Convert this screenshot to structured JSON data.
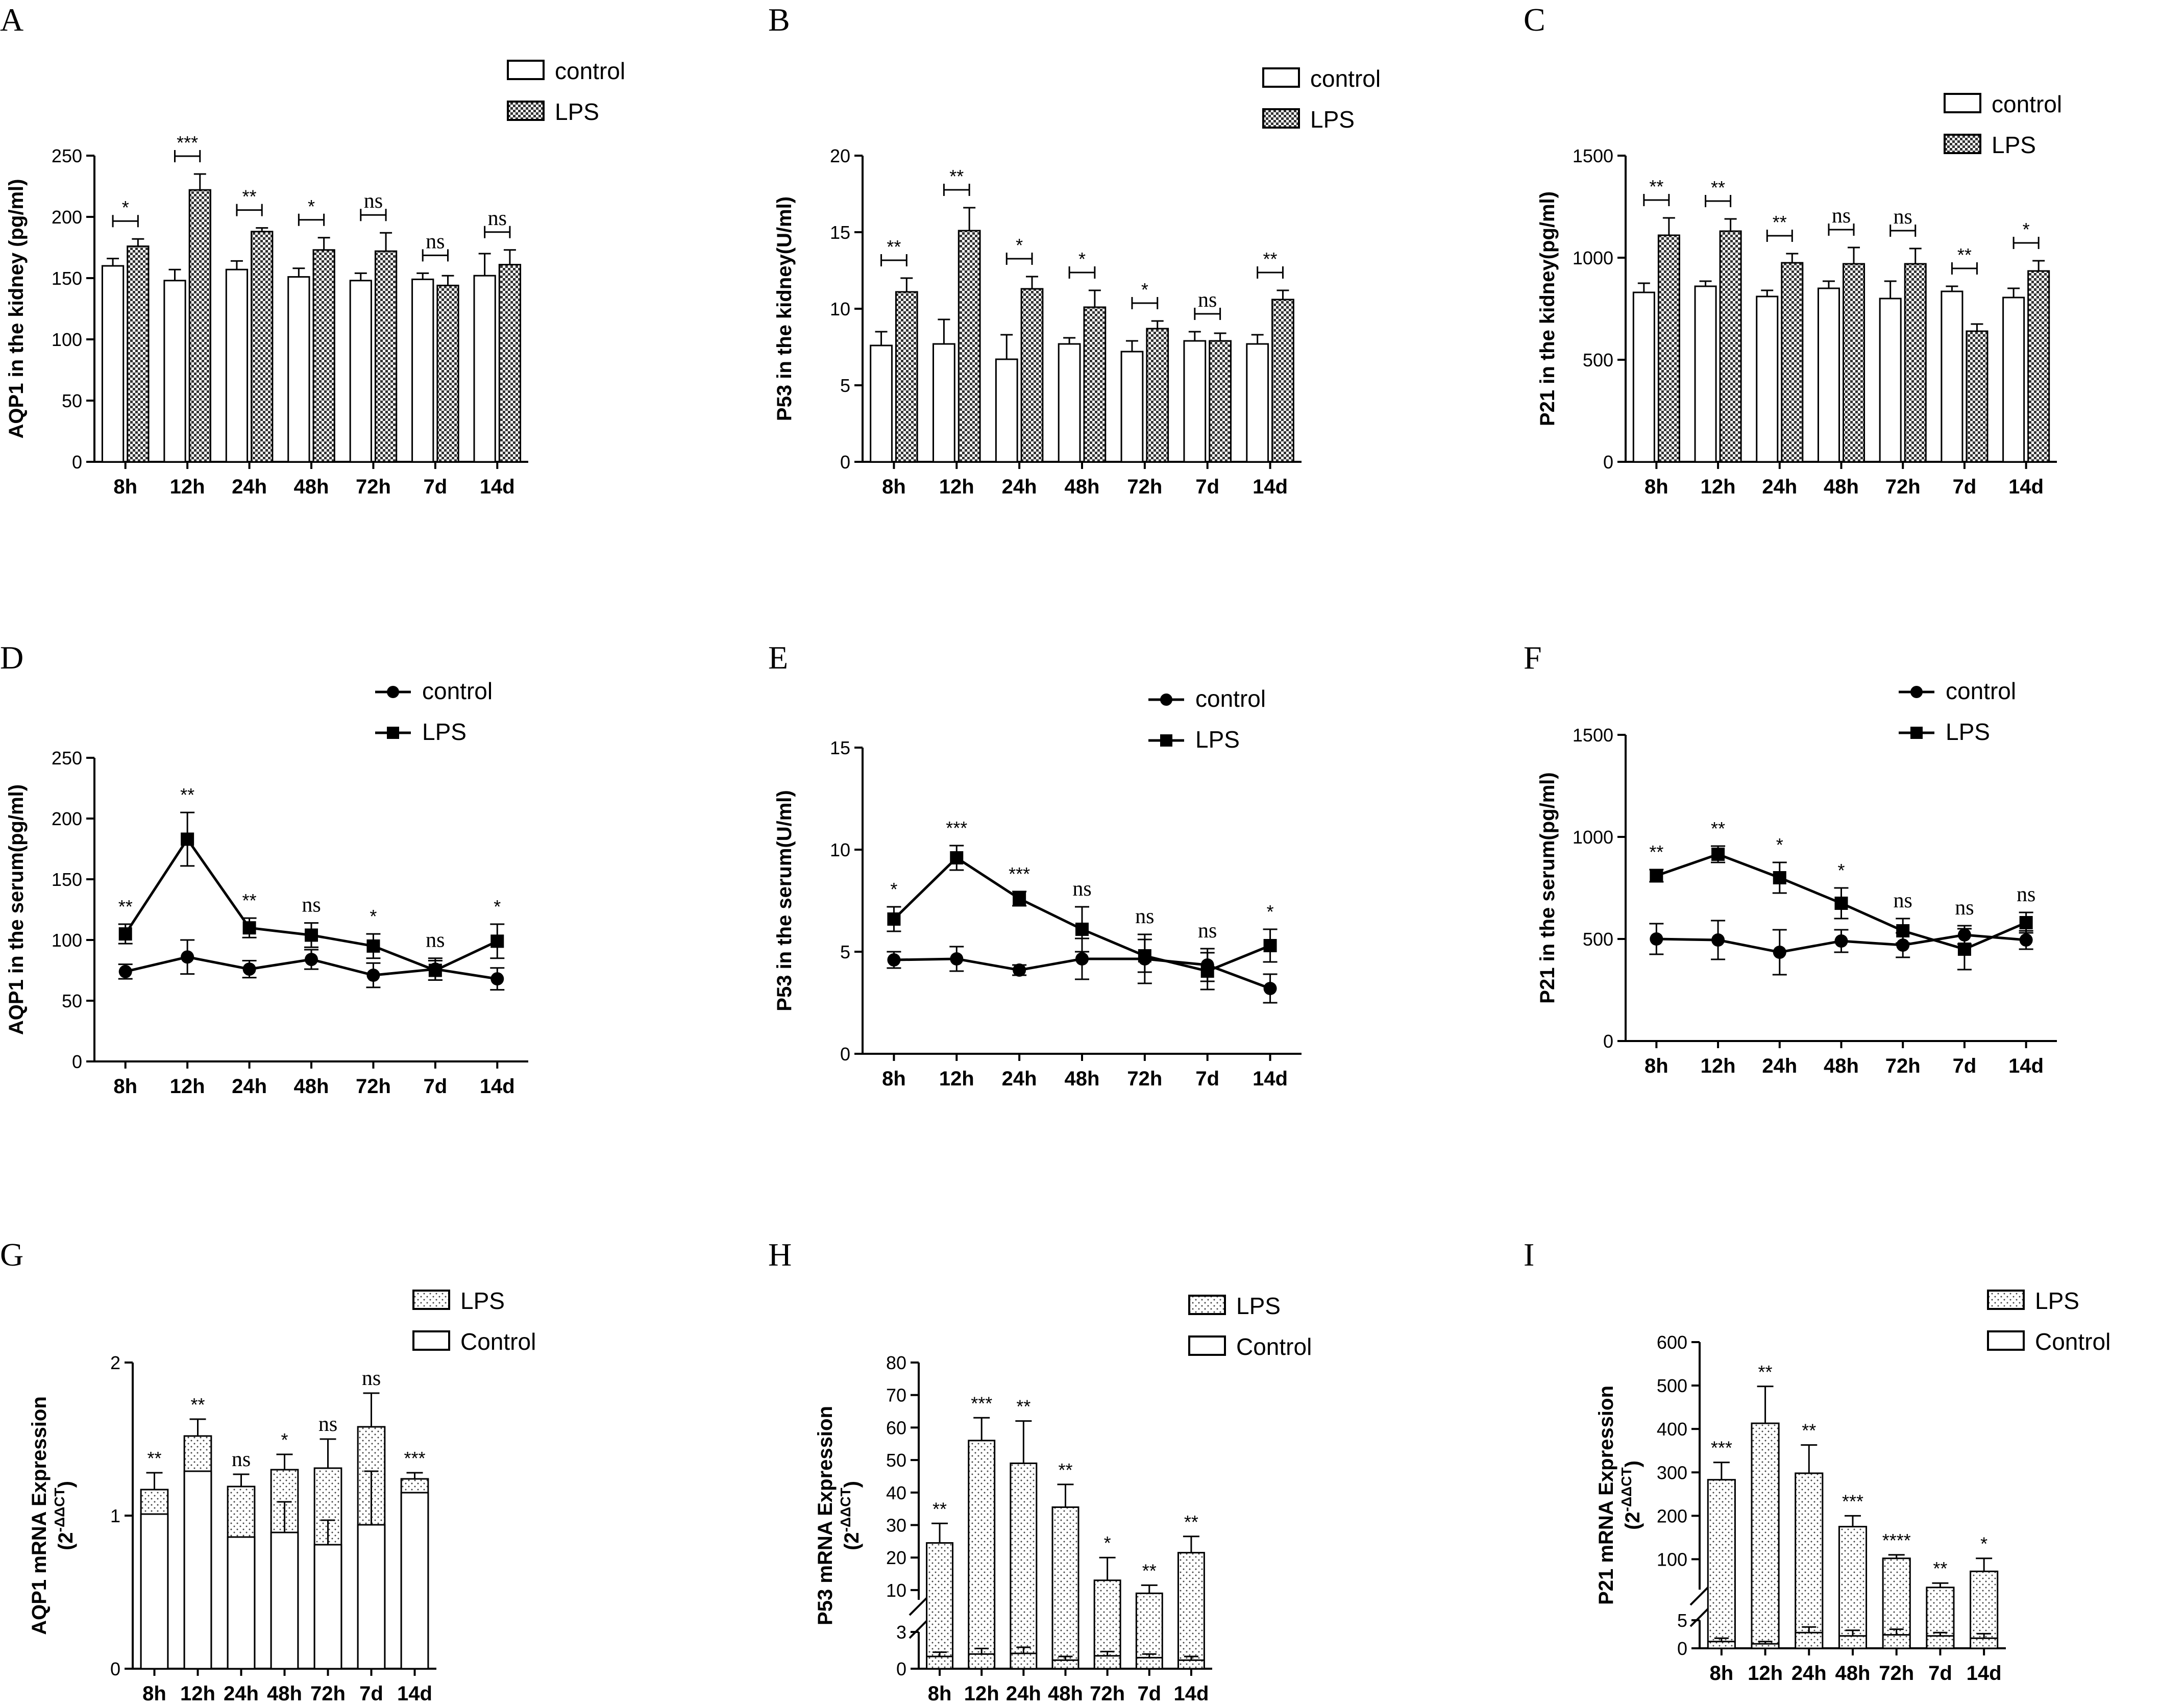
{
  "chart_data": [
    {
      "panel": "A",
      "type": "bar",
      "ylabel": "AQP1 in the kidney (pg/ml)",
      "categories": [
        "8h",
        "12h",
        "24h",
        "48h",
        "72h",
        "7d",
        "14d"
      ],
      "ylim": [
        0,
        250
      ],
      "yticks": [
        0,
        50,
        100,
        150,
        200,
        250
      ],
      "series": [
        {
          "name": "control",
          "values": [
            160,
            148,
            157,
            151,
            148,
            149,
            152
          ],
          "err": [
            6,
            9,
            7,
            7,
            6,
            5,
            18
          ]
        },
        {
          "name": "LPS",
          "values": [
            176,
            222,
            188,
            173,
            172,
            144,
            161
          ],
          "err": [
            6,
            13,
            3,
            10,
            15,
            8,
            12
          ]
        }
      ],
      "significance": [
        "*",
        "***",
        "**",
        "*",
        "ns",
        "ns",
        "ns"
      ]
    },
    {
      "panel": "B",
      "type": "bar",
      "ylabel": "P53 in the kidney(U/ml)",
      "categories": [
        "8h",
        "12h",
        "24h",
        "48h",
        "72h",
        "7d",
        "14d"
      ],
      "ylim": [
        0,
        20
      ],
      "yticks": [
        0,
        5,
        10,
        15,
        20
      ],
      "series": [
        {
          "name": "control",
          "values": [
            7.6,
            7.7,
            6.7,
            7.7,
            7.2,
            7.9,
            7.7
          ],
          "err": [
            0.9,
            1.6,
            1.6,
            0.4,
            0.7,
            0.6,
            0.6
          ]
        },
        {
          "name": "LPS",
          "values": [
            11.1,
            15.1,
            11.3,
            10.1,
            8.7,
            7.9,
            10.6
          ],
          "err": [
            0.9,
            1.5,
            0.8,
            1.1,
            0.5,
            0.5,
            0.6
          ]
        }
      ],
      "significance": [
        "**",
        "**",
        "*",
        "*",
        "*",
        "ns",
        "**"
      ]
    },
    {
      "panel": "C",
      "type": "bar",
      "ylabel": "P21 in the kidney(pg/ml)",
      "categories": [
        "8h",
        "12h",
        "24h",
        "48h",
        "72h",
        "7d",
        "14d"
      ],
      "ylim": [
        0,
        1500
      ],
      "yticks": [
        0,
        500,
        1000,
        1500
      ],
      "series": [
        {
          "name": "control",
          "values": [
            830,
            860,
            810,
            850,
            800,
            835,
            805
          ],
          "err": [
            45,
            25,
            30,
            35,
            85,
            25,
            45
          ]
        },
        {
          "name": "LPS",
          "values": [
            1110,
            1130,
            975,
            970,
            970,
            640,
            935
          ],
          "err": [
            85,
            60,
            45,
            80,
            75,
            35,
            50
          ]
        }
      ],
      "significance": [
        "**",
        "**",
        "**",
        "ns",
        "ns",
        "**",
        "*"
      ]
    },
    {
      "panel": "D",
      "type": "line",
      "ylabel": "AQP1 in the serum(pg/ml)",
      "categories": [
        "8h",
        "12h",
        "24h",
        "48h",
        "72h",
        "7d",
        "14d"
      ],
      "ylim": [
        0,
        250
      ],
      "yticks": [
        0,
        50,
        100,
        150,
        200,
        250
      ],
      "series": [
        {
          "name": "control",
          "marker": "circle",
          "values": [
            74,
            86,
            76,
            84,
            71,
            76,
            68
          ],
          "err": [
            6,
            14,
            7,
            8,
            10,
            9,
            9
          ]
        },
        {
          "name": "LPS",
          "marker": "square",
          "values": [
            105,
            183,
            110,
            104,
            95,
            75,
            99
          ],
          "err": [
            8,
            22,
            8,
            10,
            10,
            8,
            14
          ]
        }
      ],
      "significance": [
        "**",
        "**",
        "**",
        "ns",
        "*",
        "ns",
        "*"
      ]
    },
    {
      "panel": "E",
      "type": "line",
      "ylabel": "P53 in the serum(U/ml)",
      "categories": [
        "8h",
        "12h",
        "24h",
        "48h",
        "72h",
        "7d",
        "14d"
      ],
      "ylim": [
        0,
        15
      ],
      "yticks": [
        0,
        5,
        10,
        15
      ],
      "series": [
        {
          "name": "control",
          "marker": "circle",
          "values": [
            4.6,
            4.65,
            4.1,
            4.65,
            4.65,
            4.35,
            3.2
          ],
          "err": [
            0.4,
            0.6,
            0.25,
            1.0,
            1.2,
            0.8,
            0.7
          ]
        },
        {
          "name": "LPS",
          "marker": "square",
          "values": [
            6.6,
            9.6,
            7.6,
            6.1,
            4.8,
            4.05,
            5.3
          ],
          "err": [
            0.6,
            0.6,
            0.35,
            1.1,
            0.8,
            0.9,
            0.8
          ]
        }
      ],
      "significance": [
        "*",
        "***",
        "***",
        "ns",
        "ns",
        "ns",
        "*"
      ]
    },
    {
      "panel": "F",
      "type": "line",
      "ylabel": "P21 in the serum(pg/ml)",
      "categories": [
        "8h",
        "12h",
        "24h",
        "48h",
        "72h",
        "7d",
        "14d"
      ],
      "ylim": [
        0,
        1500
      ],
      "yticks": [
        0,
        500,
        1000,
        1500
      ],
      "series": [
        {
          "name": "control",
          "marker": "circle",
          "values": [
            500,
            495,
            435,
            490,
            470,
            520,
            495
          ],
          "err": [
            75,
            95,
            110,
            55,
            60,
            45,
            45
          ]
        },
        {
          "name": "LPS",
          "marker": "square",
          "values": [
            810,
            915,
            800,
            675,
            540,
            450,
            580
          ],
          "err": [
            30,
            40,
            75,
            75,
            60,
            100,
            50
          ]
        }
      ],
      "significance": [
        "**",
        "**",
        "*",
        "*",
        "ns",
        "ns",
        "ns"
      ]
    },
    {
      "panel": "G",
      "type": "bar-overlay",
      "ylabel": "AQP1 mRNA Expression",
      "ylabel2": "(2",
      "ylabel2_sup": "-ΔΔCT",
      "ylabel2_end": ")",
      "categories": [
        "8h",
        "12h",
        "24h",
        "48h",
        "72h",
        "7d",
        "14d"
      ],
      "ylim": [
        0,
        2
      ],
      "yticks": [
        0,
        1,
        2
      ],
      "series": [
        {
          "name": "LPS",
          "values": [
            1.17,
            1.52,
            1.19,
            1.3,
            1.31,
            1.58,
            1.24
          ],
          "err": [
            0.11,
            0.11,
            0.08,
            0.1,
            0.19,
            0.22,
            0.04
          ]
        },
        {
          "name": "Control",
          "values": [
            1.01,
            1.29,
            0.86,
            0.89,
            0.81,
            0.94,
            1.15
          ],
          "err": [
            0,
            0,
            0,
            0.2,
            0.16,
            0.35,
            0
          ]
        }
      ],
      "significance": [
        "**",
        "**",
        "ns",
        "*",
        "ns",
        "ns",
        "***"
      ]
    },
    {
      "panel": "H",
      "type": "bar-broken-axis",
      "ylabel": "P53 mRNA Expression",
      "ylabel2": "(2",
      "ylabel2_sup": "-ΔΔCT",
      "ylabel2_end": ")",
      "categories": [
        "8h",
        "12h",
        "24h",
        "48h",
        "72h",
        "7d",
        "14d"
      ],
      "ylim_lower": [
        0,
        3
      ],
      "ylim_upper": [
        7,
        80
      ],
      "yticks": [
        0,
        3,
        10,
        20,
        30,
        40,
        50,
        60,
        70,
        80
      ],
      "series": [
        {
          "name": "LPS",
          "values": [
            24.5,
            56,
            49,
            35.5,
            13,
            9,
            21.5
          ],
          "err": [
            6,
            7,
            13,
            7,
            7,
            2.5,
            5
          ]
        },
        {
          "name": "Control",
          "values": [
            1.0,
            1.2,
            1.25,
            0.7,
            1.05,
            0.9,
            0.7
          ],
          "err": [
            0.35,
            0.45,
            0.5,
            0.3,
            0.35,
            0.3,
            0.3
          ]
        }
      ],
      "significance": [
        "**",
        "***",
        "**",
        "**",
        "*",
        "**",
        "**"
      ]
    },
    {
      "panel": "I",
      "type": "bar-broken-axis",
      "ylabel": "P21 mRNA Expression",
      "ylabel2": "(2",
      "ylabel2_sup": "-ΔΔCT",
      "ylabel2_end": ")",
      "categories": [
        "8h",
        "12h",
        "24h",
        "48h",
        "72h",
        "7d",
        "14d"
      ],
      "ylim_lower": [
        0,
        5
      ],
      "ylim_upper": [
        30,
        600
      ],
      "yticks": [
        0,
        5,
        100,
        200,
        300,
        400,
        500,
        600
      ],
      "series": [
        {
          "name": "LPS",
          "values": [
            283,
            413,
            298,
            175,
            102,
            35,
            72
          ],
          "err": [
            40,
            85,
            65,
            25,
            8,
            10,
            30
          ]
        },
        {
          "name": "Control",
          "values": [
            1.2,
            0.8,
            2.8,
            2.2,
            2.4,
            2.2,
            1.8
          ],
          "err": [
            0.6,
            0.4,
            1.0,
            1.0,
            1.0,
            0.6,
            0.8
          ]
        }
      ],
      "significance": [
        "***",
        "**",
        "**",
        "***",
        "****",
        "**",
        "*"
      ]
    }
  ]
}
